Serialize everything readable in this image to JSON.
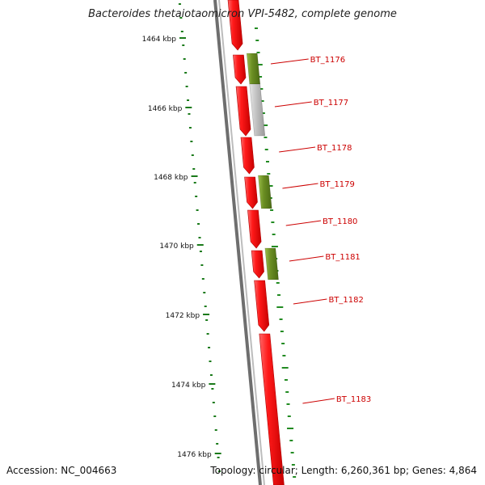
{
  "title": "Bacteroides thetaiotaomicron VPI-5482, complete genome",
  "accession": "Accession: NC_004663",
  "summary": "Topology: circular; Length: 6,260,361 bp; Genes: 4,864",
  "ruler_labels": [
    "1464 kbp",
    "1466 kbp",
    "1468 kbp",
    "1470 kbp",
    "1472 kbp",
    "1474 kbp",
    "1476 kbp"
  ],
  "genes": [
    {
      "label": "BT_1176"
    },
    {
      "label": "BT_1177"
    },
    {
      "label": "BT_1178"
    },
    {
      "label": "BT_1179"
    },
    {
      "label": "BT_1180"
    },
    {
      "label": "BT_1181"
    },
    {
      "label": "BT_1182"
    },
    {
      "label": "BT_1183"
    }
  ],
  "colors": {
    "forward_gene": "#ee1111",
    "cog_green": "#6b8e23",
    "cog_gray": "#b8b8b8",
    "backbone": "#777777",
    "ruler": "#1a7a1a",
    "label": "#cc0000"
  }
}
